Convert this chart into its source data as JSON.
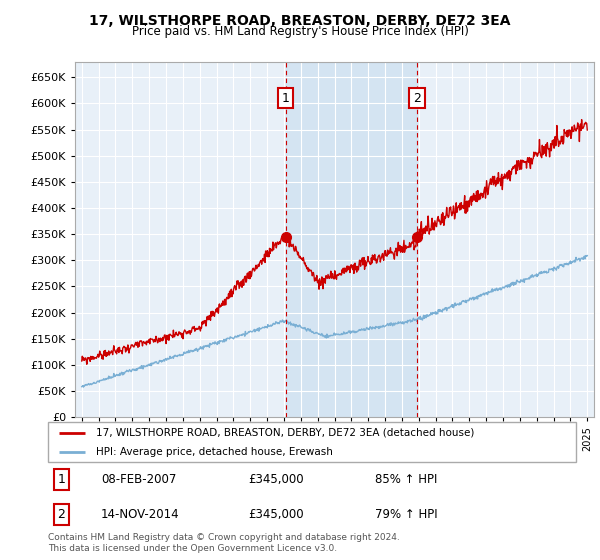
{
  "title": "17, WILSTHORPE ROAD, BREASTON, DERBY, DE72 3EA",
  "subtitle": "Price paid vs. HM Land Registry's House Price Index (HPI)",
  "legend_label_red": "17, WILSTHORPE ROAD, BREASTON, DERBY, DE72 3EA (detached house)",
  "legend_label_blue": "HPI: Average price, detached house, Erewash",
  "annotation1_date": "08-FEB-2007",
  "annotation1_price": "£345,000",
  "annotation1_hpi": "85% ↑ HPI",
  "annotation2_date": "14-NOV-2014",
  "annotation2_price": "£345,000",
  "annotation2_hpi": "79% ↑ HPI",
  "footer": "Contains HM Land Registry data © Crown copyright and database right 2024.\nThis data is licensed under the Open Government Licence v3.0.",
  "red_color": "#cc0000",
  "blue_color": "#7aafd4",
  "shade_color": "#ddeeff",
  "marker1_x": 2007.1,
  "marker1_y": 345000,
  "marker2_x": 2014.9,
  "marker2_y": 345000,
  "ylim": [
    0,
    680000
  ],
  "xlim": [
    1994.6,
    2025.4
  ],
  "yticks": [
    0,
    50000,
    100000,
    150000,
    200000,
    250000,
    300000,
    350000,
    400000,
    450000,
    500000,
    550000,
    600000,
    650000
  ],
  "plot_bg_color": "#e8f0f8",
  "fig_bg_color": "#ffffff"
}
